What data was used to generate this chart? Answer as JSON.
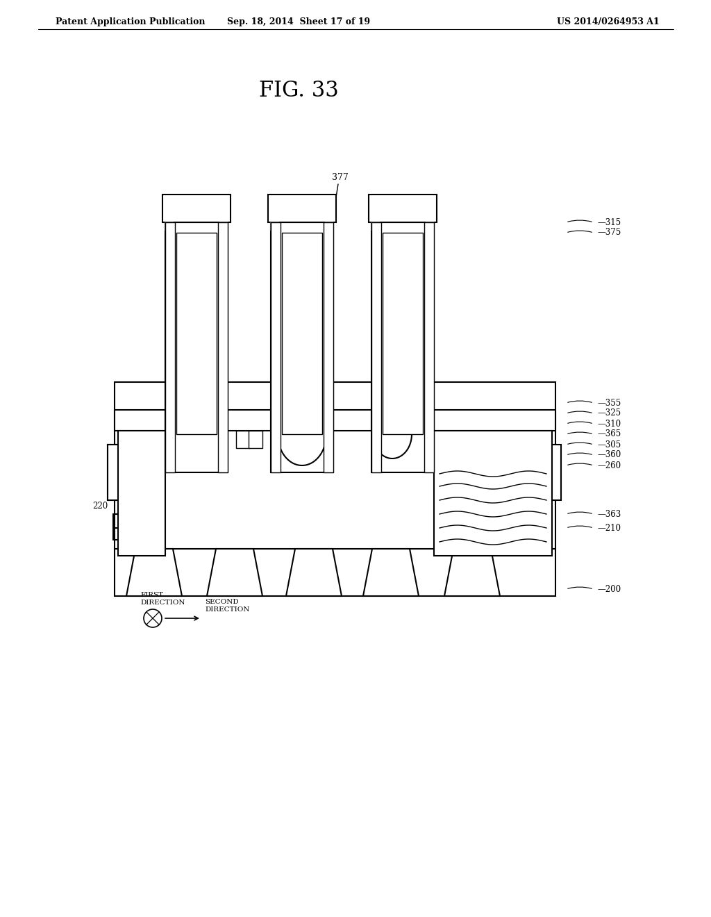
{
  "header_left": "Patent Application Publication",
  "header_mid": "Sep. 18, 2014  Sheet 17 of 19",
  "header_right": "US 2014/0264953 A1",
  "figure_title": "FIG. 33",
  "bg_color": "#ffffff",
  "line_color": "#000000",
  "fig_width": 10.24,
  "fig_height": 13.2,
  "dpi": 100
}
